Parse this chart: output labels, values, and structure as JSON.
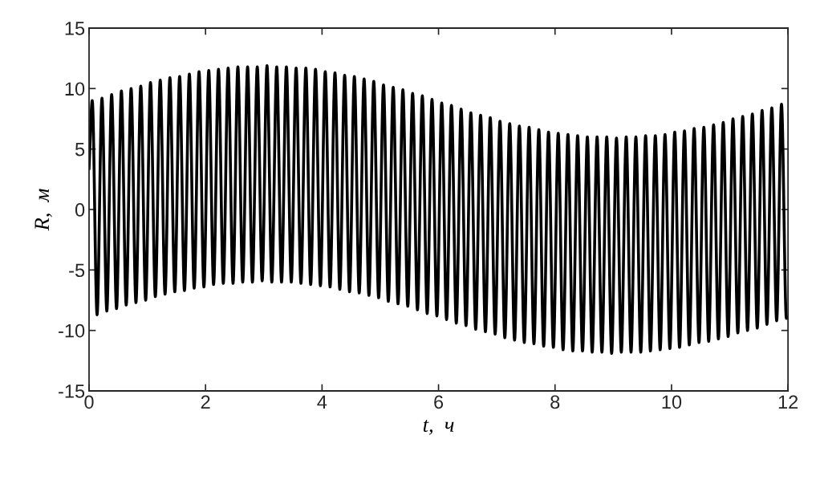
{
  "chart_data": {
    "type": "line",
    "xlabel": "t,  ч",
    "ylabel": "R,  м",
    "xlim": [
      0,
      12
    ],
    "xticks": [
      0,
      2,
      4,
      6,
      8,
      10,
      12
    ],
    "ylim": [
      -15,
      15
    ],
    "yticks": [
      {
        "value": -15,
        "label": "-15"
      },
      {
        "value": -10,
        "label": "-10"
      },
      {
        "value": -5,
        "label": "-5"
      },
      0,
      5,
      10,
      15
    ],
    "series": [
      {
        "color": "#000000",
        "line_style": "solid",
        "x": [
          0,
          0.055,
          0.138,
          0.222,
          0.305,
          0.388,
          0.472,
          0.555,
          0.638,
          0.722,
          0.805,
          0.888,
          0.972,
          1.055,
          1.138,
          1.222,
          1.305,
          1.388,
          1.472,
          1.555,
          1.638,
          1.722,
          1.805,
          1.888,
          1.972,
          2.055,
          2.138,
          2.222,
          2.305,
          2.388,
          2.472,
          2.555,
          2.638,
          2.722,
          2.805,
          2.888,
          2.972,
          3.055,
          3.138,
          3.222,
          3.305,
          3.388,
          3.472,
          3.555,
          3.638,
          3.722,
          3.805,
          3.888,
          3.972,
          4.055,
          4.138,
          4.222,
          4.305,
          4.388,
          4.472,
          4.555,
          4.638,
          4.722,
          4.805,
          4.888,
          4.972,
          5.055,
          5.138,
          5.222,
          5.305,
          5.388,
          5.472,
          5.555,
          5.638,
          5.722,
          5.805,
          5.888,
          5.972,
          6.055,
          6.138,
          6.222,
          6.305,
          6.388,
          6.472,
          6.555,
          6.638,
          6.722,
          6.805,
          6.888,
          6.972,
          7.055,
          7.138,
          7.222,
          7.305,
          7.388,
          7.472,
          7.555,
          7.638,
          7.722,
          7.805,
          7.888,
          7.972,
          8.055,
          8.138,
          8.222,
          8.305,
          8.388,
          8.472,
          8.555,
          8.638,
          8.722,
          8.805,
          8.888,
          8.972,
          9.055,
          9.138,
          9.222,
          9.305,
          9.388,
          9.472,
          9.555,
          9.638,
          9.722,
          9.805,
          9.888,
          9.972,
          10.055,
          10.138,
          10.222,
          10.305,
          10.388,
          10.472,
          10.555,
          10.638,
          10.722,
          10.805,
          10.888,
          10.972,
          11.055,
          11.138,
          11.222,
          11.305,
          11.388,
          11.472,
          11.555,
          11.638,
          11.722,
          11.805,
          11.888,
          11.972,
          12
        ],
        "values": [
          3.4,
          9.0,
          -8.7,
          9.2,
          -8.4,
          9.5,
          -8.2,
          9.8,
          -7.9,
          10.0,
          -7.7,
          10.2,
          -7.5,
          10.5,
          -7.2,
          10.7,
          -7.0,
          10.9,
          -6.8,
          11.0,
          -6.7,
          11.2,
          -6.5,
          11.4,
          -6.4,
          11.5,
          -6.2,
          11.6,
          -6.1,
          11.7,
          -6.1,
          11.8,
          -6.0,
          11.8,
          -6.0,
          11.8,
          -5.9,
          11.9,
          -6.0,
          11.8,
          -6.0,
          11.8,
          -6.0,
          11.7,
          -6.1,
          11.7,
          -6.2,
          11.6,
          -6.3,
          11.4,
          -6.4,
          11.3,
          -6.6,
          11.1,
          -6.8,
          11.0,
          -6.9,
          10.8,
          -7.1,
          10.6,
          -7.3,
          10.3,
          -7.6,
          10.1,
          -7.8,
          9.9,
          -8.0,
          9.6,
          -8.3,
          9.4,
          -8.6,
          9.1,
          -8.8,
          8.8,
          -9.1,
          8.6,
          -9.4,
          8.3,
          -9.6,
          8.0,
          -9.9,
          7.8,
          -10.1,
          7.6,
          -10.3,
          7.3,
          -10.6,
          7.1,
          -10.8,
          6.9,
          -11.0,
          6.8,
          -11.1,
          6.6,
          -11.3,
          6.4,
          -11.4,
          6.3,
          -11.6,
          6.2,
          -11.7,
          6.1,
          -11.7,
          6.0,
          -11.8,
          6.0,
          -11.8,
          6.0,
          -11.9,
          5.9,
          -11.8,
          6.0,
          -11.8,
          6.0,
          -11.8,
          6.1,
          -11.7,
          6.1,
          -11.6,
          6.2,
          -11.5,
          6.4,
          -11.4,
          6.5,
          -11.2,
          6.7,
          -11.0,
          6.8,
          -10.9,
          7.0,
          -10.7,
          7.2,
          -10.5,
          7.5,
          -10.2,
          7.7,
          -10.0,
          7.9,
          -9.8,
          8.2,
          -9.5,
          8.4,
          -9.2,
          8.7,
          -9.0,
          -8.9
        ]
      }
    ]
  }
}
